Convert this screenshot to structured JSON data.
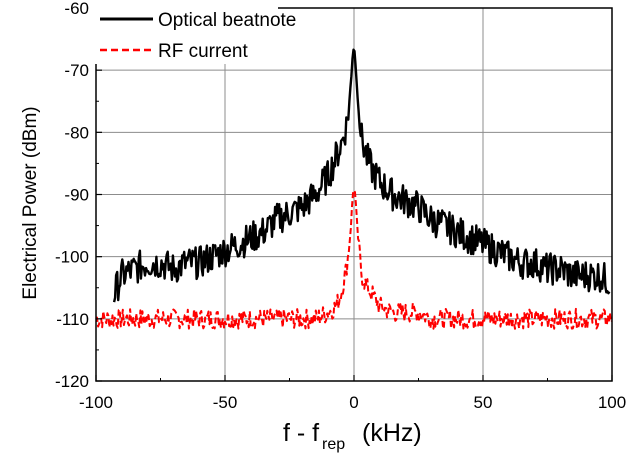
{
  "chart_data": {
    "type": "line",
    "xlabel_main": "f - f",
    "xlabel_sub": "rep",
    "xlabel_unit": "(kHz)",
    "ylabel": "Electrical Power (dBm)",
    "xlim": [
      -100,
      100
    ],
    "ylim": [
      -120,
      -60
    ],
    "xticks": [
      -100,
      -50,
      0,
      50,
      100
    ],
    "yticks": [
      -120,
      -110,
      -100,
      -90,
      -80,
      -70,
      -60
    ],
    "grid": true,
    "legend_position": "top-left",
    "series": [
      {
        "name": "Optical beatnote",
        "color": "#000000",
        "style": "solid",
        "x": [
          -93,
          -90,
          -85,
          -80,
          -75,
          -70,
          -65,
          -60,
          -55,
          -50,
          -45,
          -40,
          -35,
          -30,
          -25,
          -20,
          -15,
          -10,
          -7,
          -5,
          -3,
          -2,
          -1,
          -0.5,
          0,
          0.5,
          1,
          2,
          3,
          5,
          7,
          10,
          15,
          20,
          25,
          30,
          35,
          40,
          45,
          50,
          55,
          60,
          65,
          70,
          75,
          80,
          85,
          90,
          95,
          99
        ],
        "y": [
          -106,
          -103,
          -102,
          -101,
          -101,
          -102,
          -101,
          -101,
          -100,
          -99,
          -98,
          -97,
          -96,
          -94,
          -93,
          -92,
          -90,
          -87,
          -84,
          -82,
          -79,
          -76,
          -71,
          -67,
          -66,
          -68,
          -72,
          -77,
          -81,
          -84,
          -86,
          -88,
          -90,
          -91,
          -92,
          -94,
          -95,
          -96,
          -97,
          -98,
          -99,
          -100,
          -101,
          -101,
          -102,
          -102,
          -103,
          -103,
          -103,
          -104
        ]
      },
      {
        "name": "RF current",
        "color": "#ff0000",
        "style": "dashed",
        "x": [
          -100,
          -90,
          -80,
          -70,
          -60,
          -50,
          -40,
          -30,
          -20,
          -15,
          -10,
          -7,
          -5,
          -3,
          -2,
          -1,
          -0.5,
          0,
          0.5,
          1,
          2,
          3,
          5,
          7,
          10,
          15,
          20,
          25,
          30,
          40,
          50,
          60,
          70,
          80,
          90,
          100
        ],
        "y": [
          -110,
          -110,
          -110,
          -110,
          -110,
          -110,
          -110,
          -110,
          -110,
          -110,
          -109,
          -108,
          -106,
          -102,
          -99,
          -94,
          -90,
          -89,
          -90,
          -94,
          -99,
          -103,
          -105,
          -106,
          -108,
          -109,
          -109,
          -109,
          -110,
          -110,
          -110,
          -110,
          -110,
          -110,
          -110,
          -110
        ]
      }
    ]
  }
}
